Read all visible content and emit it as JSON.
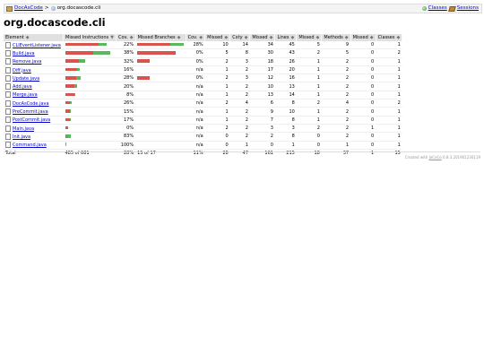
{
  "breadcrumb": {
    "root_label": "DocAsCode",
    "separator": ">",
    "current": "org.docascode.cli",
    "classes_label": "Classes",
    "sessions_label": "Sessions"
  },
  "page_title": "org.docascode.cli",
  "table": {
    "headers": {
      "element": "Element",
      "missed_instructions": "Missed Instructions",
      "cov1": "Cov.",
      "missed_branches": "Missed Branches",
      "cov2": "Cov.",
      "missed_cxty": "Missed",
      "cxty": "Cxty",
      "missed_lines": "Missed",
      "lines": "Lines",
      "missed_methods": "Missed",
      "methods": "Methods",
      "missed_classes": "Missed",
      "classes": "Classes"
    },
    "sort_indicator": "◆",
    "sort_active": "▼",
    "rows": [
      {
        "name": "CLIEventListener.java",
        "instr_red": 37,
        "instr_green": 9,
        "instr_cov": "22%",
        "br_red": 37,
        "br_green": 15,
        "br_cov": "28%",
        "missed_cxty": "10",
        "cxty": "14",
        "missed_lines": "34",
        "lines": "45",
        "missed_methods": "5",
        "methods": "9",
        "missed_classes": "0",
        "classes": "1"
      },
      {
        "name": "Build.java",
        "instr_red": 31,
        "instr_green": 19,
        "instr_cov": "38%",
        "br_red": 43,
        "br_green": 0,
        "br_cov": "0%",
        "missed_cxty": "5",
        "cxty": "8",
        "missed_lines": "30",
        "lines": "43",
        "missed_methods": "2",
        "methods": "5",
        "missed_classes": "0",
        "classes": "2"
      },
      {
        "name": "Remove.java",
        "instr_red": 15,
        "instr_green": 7,
        "instr_cov": "32%",
        "br_red": 14,
        "br_green": 0,
        "br_cov": "0%",
        "missed_cxty": "2",
        "cxty": "3",
        "missed_lines": "18",
        "lines": "26",
        "missed_methods": "1",
        "methods": "2",
        "missed_classes": "0",
        "classes": "1"
      },
      {
        "name": "Diff.java",
        "instr_red": 13,
        "instr_green": 3,
        "instr_cov": "16%",
        "br_red": 0,
        "br_green": 0,
        "br_cov": "n/a",
        "missed_cxty": "1",
        "cxty": "2",
        "missed_lines": "17",
        "lines": "20",
        "missed_methods": "1",
        "methods": "2",
        "missed_classes": "0",
        "classes": "1"
      },
      {
        "name": "Update.java",
        "instr_red": 12,
        "instr_green": 5,
        "instr_cov": "28%",
        "br_red": 14,
        "br_green": 0,
        "br_cov": "0%",
        "missed_cxty": "2",
        "cxty": "3",
        "missed_lines": "12",
        "lines": "16",
        "missed_methods": "1",
        "methods": "2",
        "missed_classes": "0",
        "classes": "1"
      },
      {
        "name": "Add.java",
        "instr_red": 10,
        "instr_green": 3,
        "instr_cov": "20%",
        "br_red": 0,
        "br_green": 0,
        "br_cov": "n/a",
        "missed_cxty": "1",
        "cxty": "2",
        "missed_lines": "10",
        "lines": "13",
        "missed_methods": "1",
        "methods": "2",
        "missed_classes": "0",
        "classes": "1"
      },
      {
        "name": "Merge.java",
        "instr_red": 10,
        "instr_green": 1,
        "instr_cov": "8%",
        "br_red": 0,
        "br_green": 0,
        "br_cov": "n/a",
        "missed_cxty": "1",
        "cxty": "2",
        "missed_lines": "13",
        "lines": "14",
        "missed_methods": "1",
        "methods": "2",
        "missed_classes": "0",
        "classes": "1"
      },
      {
        "name": "DocAsCode.java",
        "instr_red": 5,
        "instr_green": 2,
        "instr_cov": "26%",
        "br_red": 0,
        "br_green": 0,
        "br_cov": "n/a",
        "missed_cxty": "2",
        "cxty": "4",
        "missed_lines": "6",
        "lines": "8",
        "missed_methods": "2",
        "missed_methods_dummy": "",
        "methods": "4",
        "missed_classes": "0",
        "classes": "2"
      },
      {
        "name": "PreCommit.java",
        "instr_red": 5,
        "instr_green": 1,
        "instr_cov": "15%",
        "br_red": 0,
        "br_green": 0,
        "br_cov": "n/a",
        "missed_cxty": "1",
        "cxty": "2",
        "missed_lines": "9",
        "lines": "10",
        "missed_methods": "1",
        "methods": "2",
        "missed_classes": "0",
        "classes": "1"
      },
      {
        "name": "PostCommit.java",
        "instr_red": 5,
        "instr_green": 1,
        "instr_cov": "17%",
        "br_red": 0,
        "br_green": 0,
        "br_cov": "n/a",
        "missed_cxty": "1",
        "cxty": "2",
        "missed_lines": "7",
        "lines": "8",
        "missed_methods": "1",
        "methods": "2",
        "missed_classes": "0",
        "classes": "1"
      },
      {
        "name": "Main.java",
        "instr_red": 3,
        "instr_green": 0,
        "instr_cov": "0%",
        "br_red": 0,
        "br_green": 0,
        "br_cov": "n/a",
        "missed_cxty": "2",
        "cxty": "2",
        "missed_lines": "3",
        "lines": "3",
        "missed_methods": "2",
        "methods": "2",
        "missed_classes": "1",
        "classes": "1"
      },
      {
        "name": "Init.java",
        "instr_red": 1,
        "instr_green": 5,
        "instr_cov": "83%",
        "br_red": 0,
        "br_green": 0,
        "br_cov": "n/a",
        "missed_cxty": "0",
        "cxty": "2",
        "missed_lines": "2",
        "lines": "8",
        "missed_methods": "0",
        "methods": "2",
        "missed_classes": "0",
        "classes": "1"
      },
      {
        "name": "Command.java",
        "instr_red": 0,
        "instr_green": 1,
        "instr_cov": "100%",
        "br_red": 0,
        "br_green": 0,
        "br_cov": "n/a",
        "missed_cxty": "0",
        "cxty": "1",
        "missed_lines": "0",
        "lines": "1",
        "missed_methods": "0",
        "methods": "1",
        "missed_classes": "0",
        "classes": "1"
      }
    ],
    "total": {
      "label": "Total",
      "instr": "485 of 681",
      "instr_cov": "28%",
      "br": "15 of 17",
      "br_cov": "11%",
      "missed_cxty": "28",
      "cxty": "47",
      "missed_lines": "161",
      "lines": "215",
      "missed_methods": "18",
      "methods": "37",
      "missed_classes": "1",
      "classes": "15"
    }
  },
  "footer": {
    "prefix": "Created with ",
    "link": "JaCoCo",
    "suffix": " 0.8.3.201901230119"
  },
  "colors": {
    "missed": "#d9534f",
    "covered": "#5cb85c",
    "link": "#0000cc"
  }
}
